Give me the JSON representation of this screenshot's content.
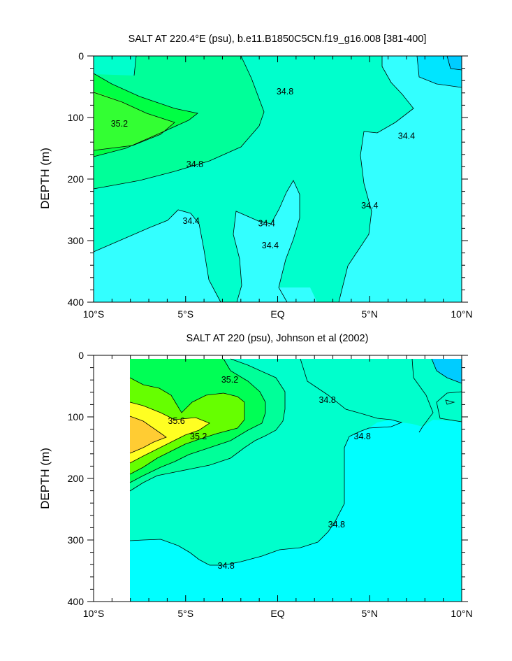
{
  "chart_data": [
    {
      "type": "contour",
      "title": "SALT AT 220.4°E (psu), b.e11.B1850C5CN.f19_g16.008 [381-400]",
      "xlabel": "",
      "ylabel": "DEPTH (m)",
      "xlim": [
        -10,
        10
      ],
      "ylim": [
        400,
        0
      ],
      "x_ticks": [
        "10°S",
        "5°S",
        "EQ",
        "5°N",
        "10°N"
      ],
      "y_ticks": [
        "0",
        "100",
        "200",
        "300",
        "400"
      ],
      "contour_labels": [
        {
          "text": "35.2",
          "lat": -8.6,
          "depth": 110
        },
        {
          "text": "34.8",
          "lat": 0.4,
          "depth": 58
        },
        {
          "text": "34.8",
          "lat": -4.5,
          "depth": 176
        },
        {
          "text": "34.4",
          "lat": 7.0,
          "depth": 130
        },
        {
          "text": "34.4",
          "lat": 5.0,
          "depth": 243
        },
        {
          "text": "34.4",
          "lat": -4.7,
          "depth": 268
        },
        {
          "text": "34.4",
          "lat": -0.6,
          "depth": 272
        },
        {
          "text": "34.4",
          "lat": -0.4,
          "depth": 308
        }
      ],
      "fill_colors": [
        "#33ffff",
        "#00ffcc",
        "#00ff99",
        "#00ff44",
        "#66ff00"
      ]
    },
    {
      "type": "contour",
      "title": "SALT AT 220 (psu), Johnson et al (2002)",
      "xlabel": "",
      "ylabel": "DEPTH (m)",
      "xlim": [
        -10,
        10
      ],
      "ylim": [
        400,
        0
      ],
      "x_ticks": [
        "10°S",
        "5°S",
        "EQ",
        "5°N",
        "10°N"
      ],
      "y_ticks": [
        "0",
        "100",
        "200",
        "300",
        "400"
      ],
      "contour_labels": [
        {
          "text": "35.2",
          "lat": -2.6,
          "depth": 40
        },
        {
          "text": "35.6",
          "lat": -5.5,
          "depth": 107
        },
        {
          "text": "35.2",
          "lat": -4.3,
          "depth": 132
        },
        {
          "text": "34.8",
          "lat": 2.7,
          "depth": 73
        },
        {
          "text": "34.8",
          "lat": 4.6,
          "depth": 132
        },
        {
          "text": "34.8",
          "lat": 3.2,
          "depth": 275
        },
        {
          "text": "34.8",
          "lat": -2.8,
          "depth": 342
        }
      ],
      "fill_colors": [
        "#00ffff",
        "#00ffcc",
        "#00ff99",
        "#00ff55",
        "#66ff00",
        "#ffff22",
        "#ffcc33"
      ]
    }
  ]
}
